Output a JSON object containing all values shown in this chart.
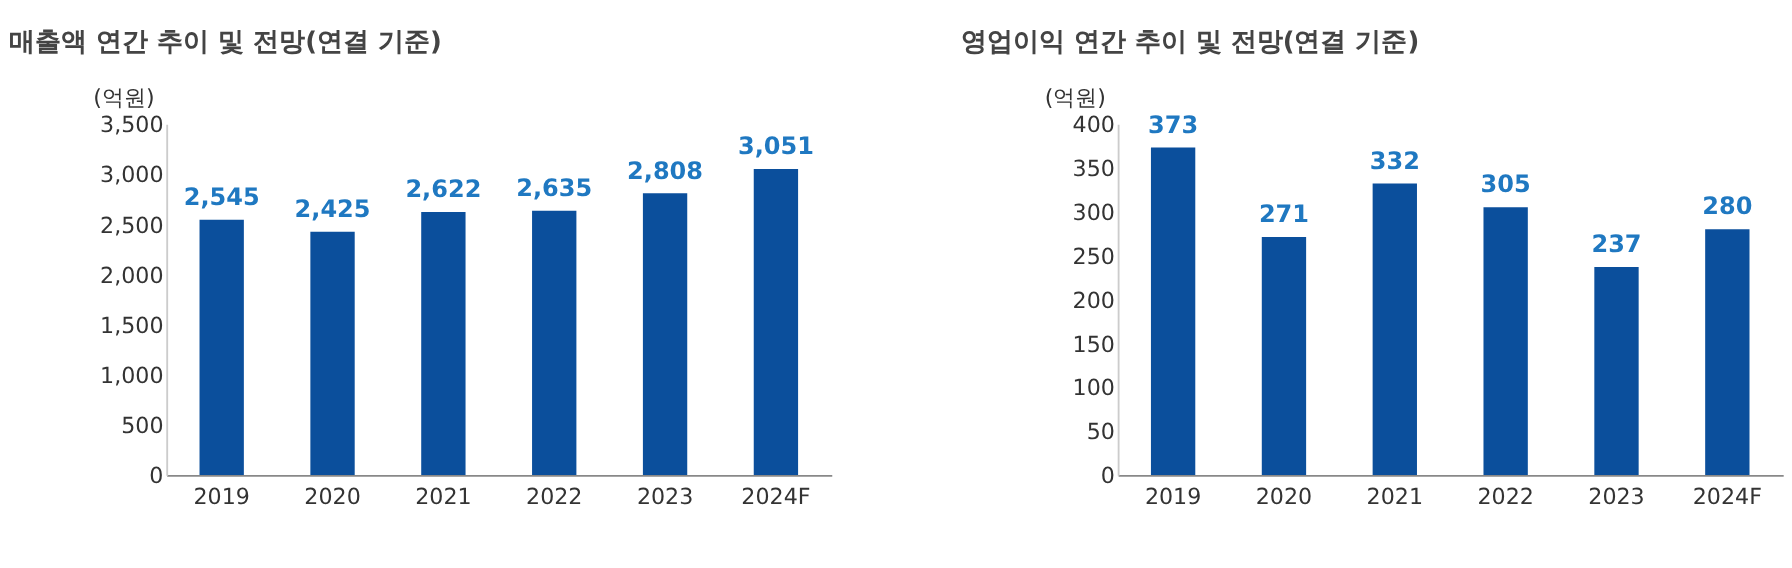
{
  "chart_data": [
    {
      "type": "bar",
      "title": "매출액 연간 추이 및 전망(연결 기준)",
      "ylabel": "(억원)",
      "categories": [
        "2019",
        "2020",
        "2021",
        "2022",
        "2023",
        "2024F"
      ],
      "values": [
        2545,
        2425,
        2622,
        2635,
        2808,
        3051
      ],
      "color": "#0b4f9c",
      "ylim": [
        0,
        3500
      ],
      "yticks": [
        {
          "value": 0,
          "label": "0"
        },
        {
          "value": 500,
          "label": "500"
        },
        {
          "value": 1000,
          "label": "1,000"
        },
        {
          "value": 1500,
          "label": "1,500"
        },
        {
          "value": 2000,
          "label": "2,000"
        },
        {
          "value": 2500,
          "label": "2,500"
        },
        {
          "value": 3000,
          "label": "3,000"
        },
        {
          "value": 3500,
          "label": "3,500"
        }
      ],
      "data_labels": true,
      "value_labels": [
        "2,545",
        "2,425",
        "2,622",
        "2,635",
        "2,808",
        "3,051"
      ],
      "grid": false
    },
    {
      "type": "bar",
      "title": "영업이익 연간 추이 및 전망(연결 기준)",
      "ylabel": "(억원)",
      "categories": [
        "2019",
        "2020",
        "2021",
        "2022",
        "2023",
        "2024F"
      ],
      "values": [
        373,
        271,
        332,
        305,
        237,
        280
      ],
      "color": "#0b4f9c",
      "ylim": [
        0,
        400
      ],
      "yticks": [
        0,
        50,
        100,
        150,
        200,
        250,
        300,
        350,
        400
      ],
      "data_labels": true,
      "grid": false
    }
  ]
}
